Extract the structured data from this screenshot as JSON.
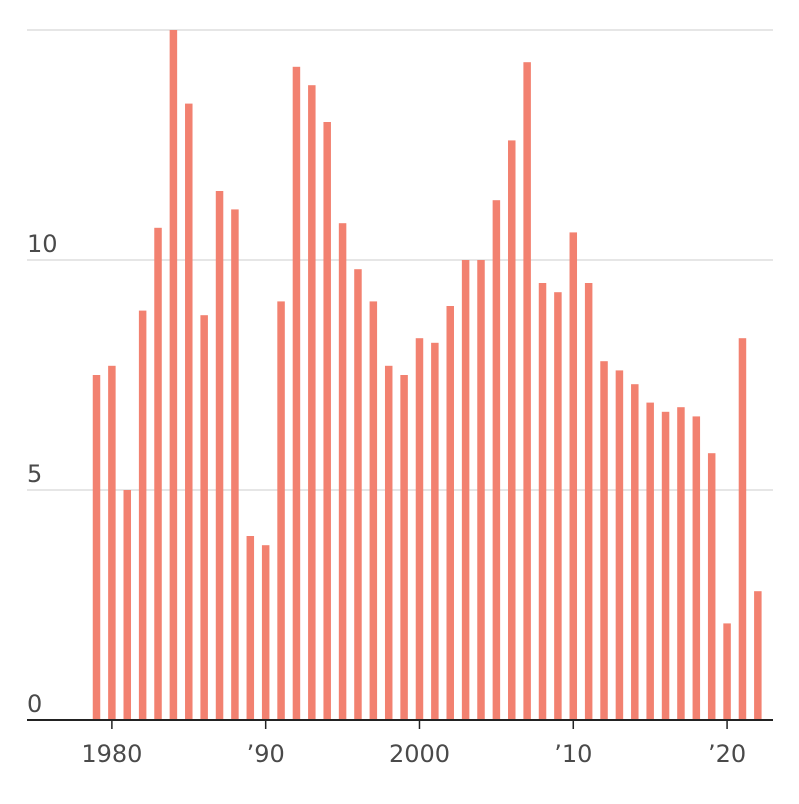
{
  "chart_data": {
    "type": "bar",
    "title": "",
    "xlabel": "",
    "ylabel": "",
    "bar_color": "#f28170",
    "grid": true,
    "legend": "none",
    "xlim": [
      1976,
      2023
    ],
    "ylim": [
      0,
      15
    ],
    "y_ticks": [
      {
        "value": 0,
        "label": "0"
      },
      {
        "value": 5,
        "label": "5"
      },
      {
        "value": 10,
        "label": "10"
      }
    ],
    "x_ticks": [
      {
        "value": 1980,
        "label": "1980"
      },
      {
        "value": 1990,
        "label": "’90"
      },
      {
        "value": 2000,
        "label": "2000"
      },
      {
        "value": 2010,
        "label": "’10"
      },
      {
        "value": 2020,
        "label": "’20"
      }
    ],
    "x": [
      1979,
      1980,
      1981,
      1982,
      1983,
      1984,
      1985,
      1986,
      1987,
      1988,
      1989,
      1990,
      1991,
      1992,
      1993,
      1994,
      1995,
      1996,
      1997,
      1998,
      1999,
      2000,
      2001,
      2002,
      2003,
      2004,
      2005,
      2006,
      2007,
      2008,
      2009,
      2010,
      2011,
      2012,
      2013,
      2014,
      2015,
      2016,
      2017,
      2018,
      2019,
      2020,
      2021,
      2022
    ],
    "values": [
      7.5,
      7.7,
      5.0,
      8.9,
      10.7,
      15.0,
      13.4,
      8.8,
      11.5,
      11.1,
      4.0,
      3.8,
      9.1,
      14.2,
      13.8,
      13.0,
      10.8,
      9.8,
      9.1,
      7.7,
      7.5,
      8.3,
      8.2,
      9.0,
      10.0,
      10.0,
      11.3,
      12.6,
      14.3,
      9.5,
      9.3,
      10.6,
      9.5,
      7.8,
      7.6,
      7.3,
      6.9,
      6.7,
      6.8,
      6.6,
      5.8,
      2.1,
      8.3,
      2.8
    ]
  }
}
